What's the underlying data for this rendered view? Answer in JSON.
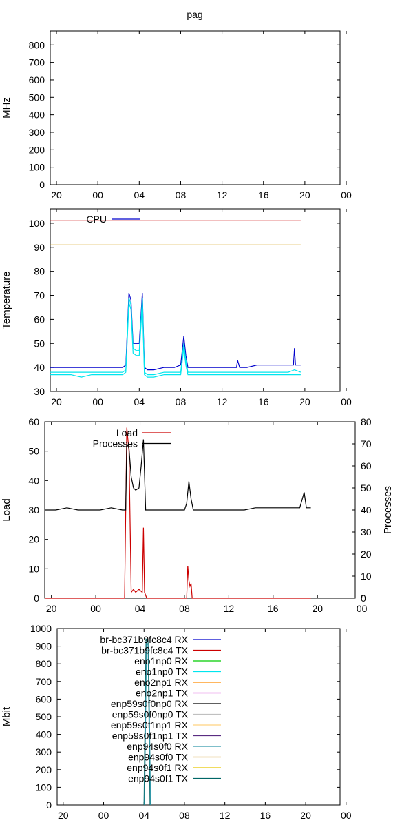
{
  "page_title": "pag",
  "chart_data": [
    {
      "id": "cpu_freq",
      "type": "line",
      "title": "pag",
      "ylabel": "MHz",
      "ylim": [
        0,
        880
      ],
      "yticks": [
        0,
        100,
        200,
        300,
        400,
        500,
        600,
        700,
        800
      ],
      "xticks": [
        "20",
        "00",
        "04",
        "08",
        "12",
        "16",
        "20",
        "00"
      ],
      "xlim": [
        -4,
        24
      ],
      "series": []
    },
    {
      "id": "temperature",
      "type": "line",
      "title": "",
      "ylabel": "Temperature",
      "ylim": [
        30,
        106
      ],
      "yticks": [
        30,
        40,
        50,
        60,
        70,
        80,
        90,
        100
      ],
      "xticks": [
        "20",
        "00",
        "04",
        "08",
        "12",
        "16",
        "20",
        "00"
      ],
      "xlim": [
        -4,
        24
      ],
      "legend": [
        {
          "name": "CPU",
          "color": "#0000cc"
        }
      ],
      "series": [
        {
          "role": "critical-threshold",
          "color": "#cc0000",
          "x": [
            -4,
            20.2
          ],
          "y": [
            101,
            101
          ]
        },
        {
          "role": "high-threshold",
          "color": "#d4a017",
          "x": [
            -4,
            20.2
          ],
          "y": [
            91,
            91
          ]
        },
        {
          "role": "cpu",
          "color": "#0000cc",
          "x": [
            -4,
            -3,
            -2,
            -1,
            0,
            1,
            2,
            3,
            3.3,
            3.6,
            3.8,
            4.0,
            4.3,
            4.6,
            4.9,
            5.1,
            5.4,
            6,
            7,
            8,
            8.6,
            8.9,
            9.1,
            9.3,
            10,
            11,
            12,
            13,
            14,
            14.1,
            14.3,
            15,
            16,
            17,
            18,
            19,
            19.5,
            19.6,
            19.7,
            20.2
          ],
          "y": [
            40,
            40,
            40,
            40,
            40,
            40,
            40,
            40,
            41,
            71,
            68,
            50,
            50,
            50,
            71,
            40,
            39,
            39,
            40,
            40,
            41,
            53,
            45,
            40,
            40,
            40,
            40,
            40,
            40,
            43,
            40,
            40,
            41,
            41,
            41,
            41,
            41,
            48,
            41,
            41
          ]
        },
        {
          "role": "cores",
          "color": "#00e5ee",
          "x": [
            -4,
            -3,
            -2,
            -1,
            0,
            1,
            2,
            3,
            3.3,
            3.6,
            3.8,
            4.0,
            4.3,
            4.6,
            4.9,
            5.1,
            5.4,
            6,
            7,
            8,
            8.6,
            8.9,
            9.1,
            9.3,
            10,
            11,
            12,
            13,
            14,
            15,
            16,
            17,
            18,
            19,
            19.6,
            20.2
          ],
          "y": [
            38,
            38,
            38,
            38,
            38,
            38,
            38,
            38,
            39,
            69,
            66,
            48,
            47,
            47,
            69,
            38,
            37,
            37,
            38,
            38,
            38,
            50,
            43,
            38,
            38,
            38,
            38,
            38,
            38,
            38,
            38,
            38,
            38,
            38,
            39,
            38
          ]
        },
        {
          "role": "cores-low",
          "color": "#00e5ee",
          "x": [
            -4,
            -3,
            -2,
            -1,
            0,
            1,
            2,
            3,
            3.3,
            3.6,
            3.8,
            4.0,
            4.3,
            4.6,
            4.9,
            5.1,
            5.4,
            6,
            7,
            8,
            8.6,
            8.9,
            9.1,
            9.3,
            10,
            11,
            12,
            13,
            14,
            15,
            16,
            17,
            18,
            19,
            20.2
          ],
          "y": [
            37,
            37,
            37,
            36,
            37,
            37,
            37,
            37,
            38,
            67,
            64,
            46,
            45,
            45,
            67,
            37,
            36,
            36,
            37,
            37,
            37,
            48,
            41,
            37,
            37,
            37,
            37,
            37,
            37,
            37,
            37,
            37,
            37,
            37,
            37
          ]
        }
      ]
    },
    {
      "id": "load",
      "type": "line",
      "title": "",
      "ylabel": "Load",
      "y2label": "Processes",
      "ylim": [
        0,
        60
      ],
      "y2lim": [
        0,
        80
      ],
      "yticks": [
        0,
        10,
        20,
        30,
        40,
        50,
        60
      ],
      "y2ticks": [
        0,
        10,
        20,
        30,
        40,
        50,
        60,
        70,
        80
      ],
      "xticks": [
        "20",
        "00",
        "04",
        "08",
        "12",
        "16",
        "20",
        "00"
      ],
      "xlim": [
        -4,
        24
      ],
      "legend": [
        {
          "name": "Load",
          "color": "#cc0000"
        },
        {
          "name": "Processes",
          "color": "#000000"
        }
      ],
      "series": [
        {
          "name": "Load",
          "axis": "y",
          "color": "#cc0000",
          "x": [
            -4,
            -1.5,
            0,
            2,
            3.2,
            3.4,
            3.6,
            3.8,
            4.0,
            4.2,
            4.5,
            4.8,
            4.9,
            5.0,
            5.2,
            6,
            8,
            8.8,
            8.9,
            9.0,
            9.1,
            9.2,
            9.3,
            10,
            12,
            14,
            16,
            17,
            20
          ],
          "y": [
            0,
            0,
            0,
            0,
            0,
            58,
            50,
            2,
            3,
            2,
            3,
            2,
            24,
            2,
            0,
            0,
            0,
            0,
            11,
            6,
            4,
            5,
            0,
            0,
            0,
            0,
            0,
            0,
            0
          ]
        },
        {
          "name": "Processes",
          "axis": "y2",
          "color": "#000000",
          "x": [
            -4,
            -3,
            -2,
            -1,
            0,
            1,
            2,
            3,
            3.3,
            3.4,
            3.6,
            3.8,
            4.0,
            4.2,
            4.5,
            4.7,
            4.9,
            5.1,
            5.4,
            6,
            7,
            8,
            8.6,
            8.8,
            9.0,
            9.2,
            9.4,
            10,
            11,
            12,
            13,
            14,
            15,
            16,
            17,
            18,
            19,
            19.4,
            19.6,
            20
          ],
          "y": [
            40,
            40,
            41,
            40,
            40,
            40,
            41,
            40,
            40,
            70,
            68,
            55,
            50,
            49,
            50,
            60,
            72,
            40,
            40,
            40,
            40,
            40,
            40,
            43,
            53,
            45,
            40,
            40,
            40,
            40,
            40,
            40,
            41,
            41,
            41,
            41,
            41,
            48,
            41,
            41
          ]
        }
      ]
    },
    {
      "id": "network",
      "type": "line",
      "title": "",
      "ylabel": "Mbit",
      "ylim": [
        0,
        1000
      ],
      "yticks": [
        0,
        100,
        200,
        300,
        400,
        500,
        600,
        700,
        800,
        900,
        1000
      ],
      "xticks": [
        "20",
        "00",
        "04",
        "08",
        "12",
        "16",
        "20",
        "00"
      ],
      "xlim": [
        -4,
        24
      ],
      "legend": [
        {
          "name": "br-bc371b9fc8c4 RX",
          "color": "#0000cc"
        },
        {
          "name": "br-bc371b9fc8c4 TX",
          "color": "#cc0000"
        },
        {
          "name": "eno1np0 RX",
          "color": "#00cc00"
        },
        {
          "name": "eno1np0 TX",
          "color": "#00e5ee"
        },
        {
          "name": "eno2np1 RX",
          "color": "#ff8c00"
        },
        {
          "name": "eno2np1 TX",
          "color": "#cc00cc"
        },
        {
          "name": "enp59s0f0np0 RX",
          "color": "#000000"
        },
        {
          "name": "enp59s0f0np0 TX",
          "color": "#c0c0c0"
        },
        {
          "name": "enp59s0f1np1 RX",
          "color": "#ffd27f"
        },
        {
          "name": "enp59s0f1np1 TX",
          "color": "#5a2d82"
        },
        {
          "name": "enp94s0f0 RX",
          "color": "#3399aa"
        },
        {
          "name": "enp94s0f0 TX",
          "color": "#cc8800"
        },
        {
          "name": "enp94s0f1 RX",
          "color": "#e8c800"
        },
        {
          "name": "enp94s0f1 TX",
          "color": "#006666"
        }
      ],
      "series": [
        {
          "name": "enp94s0f1 TX",
          "color": "#006666",
          "x": [
            4.6,
            4.8,
            5.0,
            5.2
          ],
          "y": [
            0,
            940,
            930,
            0
          ]
        },
        {
          "name": "enp94s0f0 RX",
          "color": "#3399aa",
          "x": [
            4.65,
            4.85,
            5.05,
            5.25
          ],
          "y": [
            0,
            920,
            900,
            0
          ]
        }
      ]
    }
  ]
}
